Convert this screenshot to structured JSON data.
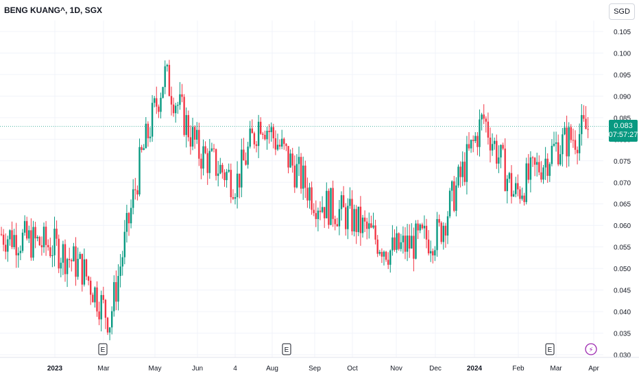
{
  "header": {
    "title": "BENG KUANG^, 1D, SGX"
  },
  "currency": {
    "label": "SGD"
  },
  "price_tag": {
    "price": "0.083",
    "countdown": "07:57:27"
  },
  "colors": {
    "up": "#089981",
    "down": "#f23645",
    "grid": "#f0f3fa",
    "axis_text": "#131722",
    "event": "#9c27b0"
  },
  "markers": [
    {
      "label": "E",
      "date": "2023-03",
      "kind": "earnings"
    },
    {
      "label": "E",
      "date": "2023-08",
      "kind": "earnings"
    },
    {
      "label": "E",
      "date": "2024-03",
      "kind": "earnings"
    },
    {
      "label": "⚡",
      "date": "2024-04",
      "kind": "event"
    }
  ],
  "chart_data": {
    "type": "candlestick",
    "title": "BENG KUANG^, 1D, SGX",
    "currency": "SGD",
    "last_price": 0.083,
    "y_ticks": [
      "0.030",
      "0.035",
      "0.040",
      "0.045",
      "0.050",
      "0.055",
      "0.060",
      "0.065",
      "0.070",
      "0.075",
      "0.080",
      "0.085",
      "0.090",
      "0.095",
      "0.100",
      "0.105"
    ],
    "ylim": [
      0.03,
      0.105
    ],
    "x_ticks": [
      "2023",
      "Mar",
      "May",
      "Jun",
      "4",
      "Aug",
      "Sep",
      "Oct",
      "Nov",
      "Dec",
      "2024",
      "Feb",
      "Mar",
      "Apr"
    ],
    "x_bold": [
      "2023",
      "2024"
    ],
    "grid": true,
    "series": [
      {
        "name": "price",
        "anchors": [
          {
            "date": "2022-12",
            "close": 0.058
          },
          {
            "date": "2023-01",
            "close": 0.055
          },
          {
            "date": "2023-02",
            "close": 0.05
          },
          {
            "date": "2023-03",
            "close": 0.038
          },
          {
            "date": "2023-04",
            "close": 0.075
          },
          {
            "date": "2023-05",
            "close": 0.095
          },
          {
            "date": "2023-06",
            "close": 0.077
          },
          {
            "date": "2023-07",
            "close": 0.07
          },
          {
            "date": "2023-08",
            "close": 0.085
          },
          {
            "date": "2023-09",
            "close": 0.066
          },
          {
            "date": "2023-10",
            "close": 0.062
          },
          {
            "date": "2023-11",
            "close": 0.054
          },
          {
            "date": "2023-12",
            "close": 0.058
          },
          {
            "date": "2024-01",
            "close": 0.085
          },
          {
            "date": "2024-02",
            "close": 0.067
          },
          {
            "date": "2024-03",
            "close": 0.078
          },
          {
            "date": "2024-04",
            "close": 0.083
          }
        ]
      }
    ]
  }
}
